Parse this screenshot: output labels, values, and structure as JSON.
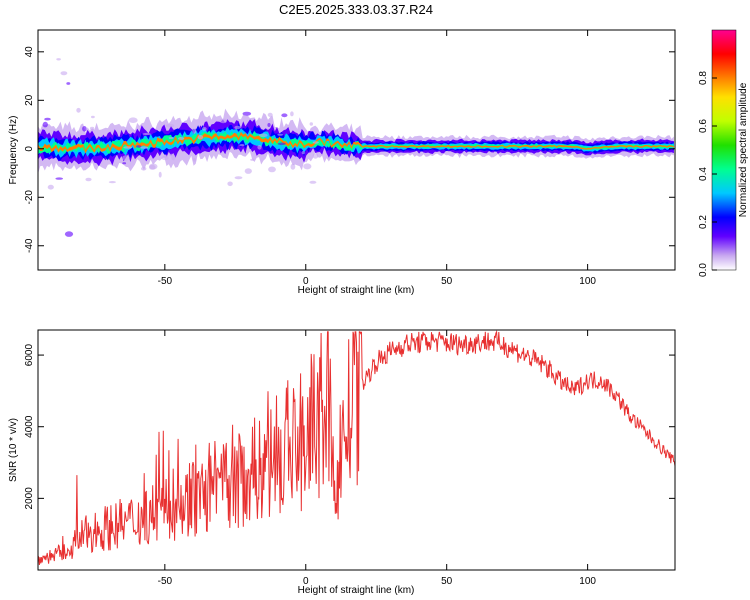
{
  "title": "C2E5.2025.333.03.37.R24",
  "chart_data": [
    {
      "type": "heatmap",
      "xlabel": "Height of straight line (km)",
      "ylabel": "Frequency (Hz)",
      "xlim": [
        -95,
        131
      ],
      "ylim": [
        -50,
        49
      ],
      "xticks": [
        -50,
        0,
        50,
        100
      ],
      "yticks": [
        -40,
        -20,
        0,
        20,
        40
      ],
      "colorbar": {
        "label": "Normalized spectral amplitude",
        "range": [
          0,
          1
        ],
        "ticks": [
          "0.0",
          "0.2",
          "0.4",
          "0.6",
          "0.8"
        ],
        "tick_values": [
          0,
          0.2,
          0.4,
          0.6,
          0.8
        ],
        "colors": [
          "#ffffff",
          "#c8a8f0",
          "#6000ff",
          "#0000ff",
          "#00c8ff",
          "#00ff90",
          "#20e000",
          "#c0ff00",
          "#ffe000",
          "#ff8000",
          "#ff0000",
          "#ff0090"
        ]
      },
      "ridge": [
        {
          "x": -95,
          "f": 1
        },
        {
          "x": -80,
          "f": 0
        },
        {
          "x": -65,
          "f": 1
        },
        {
          "x": -50,
          "f": 3
        },
        {
          "x": -40,
          "f": 4
        },
        {
          "x": -30,
          "f": 5
        },
        {
          "x": -20,
          "f": 5
        },
        {
          "x": -15,
          "f": 4
        },
        {
          "x": -10,
          "f": 3
        },
        {
          "x": -5,
          "f": 2
        },
        {
          "x": 0,
          "f": 2
        },
        {
          "x": 5,
          "f": 3
        },
        {
          "x": 10,
          "f": 2
        },
        {
          "x": 20,
          "f": 1
        },
        {
          "x": 40,
          "f": 1
        },
        {
          "x": 60,
          "f": 1
        },
        {
          "x": 80,
          "f": 1
        },
        {
          "x": 95,
          "f": 1
        },
        {
          "x": 100,
          "f": 0
        },
        {
          "x": 110,
          "f": 1
        },
        {
          "x": 131,
          "f": 1
        }
      ]
    },
    {
      "type": "line",
      "xlabel": "Height of straight line (km)",
      "ylabel": "SNR (10 * v/v)",
      "xlim": [
        -95,
        131
      ],
      "ylim": [
        0,
        6700
      ],
      "xticks": [
        -50,
        0,
        50,
        100
      ],
      "yticks": [
        2000,
        4000,
        6000
      ],
      "color": "#e83030",
      "x": [
        -95,
        -90,
        -85,
        -80,
        -75,
        -70,
        -65,
        -60,
        -55,
        -50,
        -45,
        -40,
        -35,
        -30,
        -25,
        -20,
        -15,
        -10,
        -5,
        0,
        5,
        8,
        10,
        12,
        15,
        20,
        25,
        30,
        35,
        40,
        45,
        50,
        55,
        60,
        65,
        70,
        75,
        80,
        85,
        90,
        95,
        100,
        105,
        110,
        115,
        120,
        125,
        131
      ],
      "y": [
        300,
        400,
        500,
        900,
        1100,
        1200,
        1300,
        1400,
        1600,
        1700,
        1800,
        2000,
        2100,
        2300,
        2400,
        2700,
        2900,
        3100,
        3400,
        3700,
        4200,
        4800,
        2100,
        3200,
        4200,
        5200,
        5800,
        6100,
        6300,
        6350,
        6400,
        6350,
        6300,
        6350,
        6400,
        6300,
        6100,
        5900,
        5700,
        5300,
        5000,
        5300,
        5300,
        4900,
        4300,
        3900,
        3500,
        3000
      ]
    }
  ]
}
